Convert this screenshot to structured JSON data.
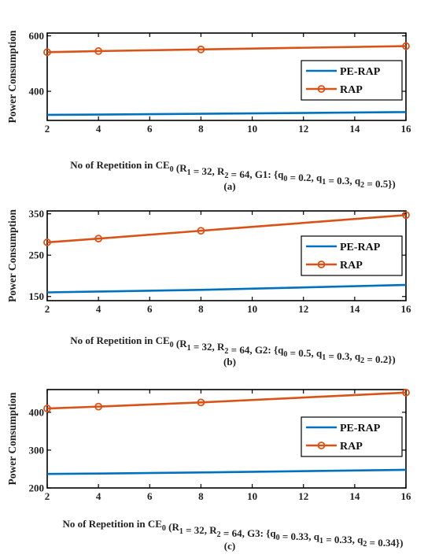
{
  "colors": {
    "pe_rap": "#0072BD",
    "rap": "#D95319",
    "axis": "#000000"
  },
  "chart_data": [
    {
      "type": "line",
      "x": [
        2,
        4,
        8,
        16
      ],
      "xlim": [
        2,
        16
      ],
      "ylim": [
        295,
        610
      ],
      "xticks": [
        "2",
        "4",
        "6",
        "8",
        "10",
        "12",
        "14",
        "16"
      ],
      "yticks": [
        "400",
        "600"
      ],
      "ylabel": "Power Consumption",
      "xlabel": {
        "pre": "No of Repetition in CE",
        "pre_sub": "0",
        "a": " (R",
        "a_sub": "1",
        "b": " = 32, R",
        "b_sub": "2",
        "c": " = 64, G1: {q",
        "c_sub": "0",
        "d": " = 0.2, q",
        "d_sub": "1",
        "e": " = 0.3, q",
        "e_sub": "2",
        "f": " = 0.5})"
      },
      "caption": "(a)",
      "legend": "right",
      "grid": false,
      "series": [
        {
          "name": "PE-RAP",
          "values": [
            315,
            316,
            319,
            325
          ]
        },
        {
          "name": "RAP",
          "values": [
            541,
            545,
            551,
            563
          ]
        }
      ]
    },
    {
      "type": "line",
      "x": [
        2,
        4,
        8,
        16
      ],
      "xlim": [
        2,
        16
      ],
      "ylim": [
        140,
        357
      ],
      "xticks": [
        "2",
        "4",
        "6",
        "8",
        "10",
        "12",
        "14",
        "16"
      ],
      "yticks": [
        "150",
        "250",
        "350"
      ],
      "ylabel": "Power Consumption",
      "xlabel": {
        "pre": "No of Repetition in CE",
        "pre_sub": "0",
        "a": " (R",
        "a_sub": "1",
        "b": " = 32, R",
        "b_sub": "2",
        "c": " = 64, G2: {q",
        "c_sub": "0",
        "d": " = 0.5, q",
        "d_sub": "1",
        "e": " = 0.3, q",
        "e_sub": "2",
        "f": " = 0.2})"
      },
      "caption": "(b)",
      "legend": "right",
      "grid": false,
      "series": [
        {
          "name": "PE-RAP",
          "values": [
            160,
            162,
            166,
            178
          ]
        },
        {
          "name": "RAP",
          "values": [
            281,
            290,
            309,
            347
          ]
        }
      ]
    },
    {
      "type": "line",
      "x": [
        2,
        4,
        8,
        16
      ],
      "xlim": [
        2,
        16
      ],
      "ylim": [
        200,
        460
      ],
      "xticks": [
        "2",
        "4",
        "6",
        "8",
        "10",
        "12",
        "14",
        "16"
      ],
      "yticks": [
        "200",
        "300",
        "400"
      ],
      "ylabel": "Power Consumption",
      "xlabel": {
        "pre": "No of Repetition in CE",
        "pre_sub": "0",
        "a": " (R",
        "a_sub": "1",
        "b": " = 32, R",
        "b_sub": "2",
        "c": " = 64, G3: {q",
        "c_sub": "0",
        "d": " = 0.33, q",
        "d_sub": "1",
        "e": " = 0.33, q",
        "e_sub": "2",
        "f": " = 0.34})"
      },
      "caption": "(c)",
      "legend": "right",
      "grid": false,
      "series": [
        {
          "name": "PE-RAP",
          "values": [
            237,
            238,
            241,
            248
          ]
        },
        {
          "name": "RAP",
          "values": [
            410,
            415,
            426,
            452
          ]
        }
      ]
    }
  ]
}
